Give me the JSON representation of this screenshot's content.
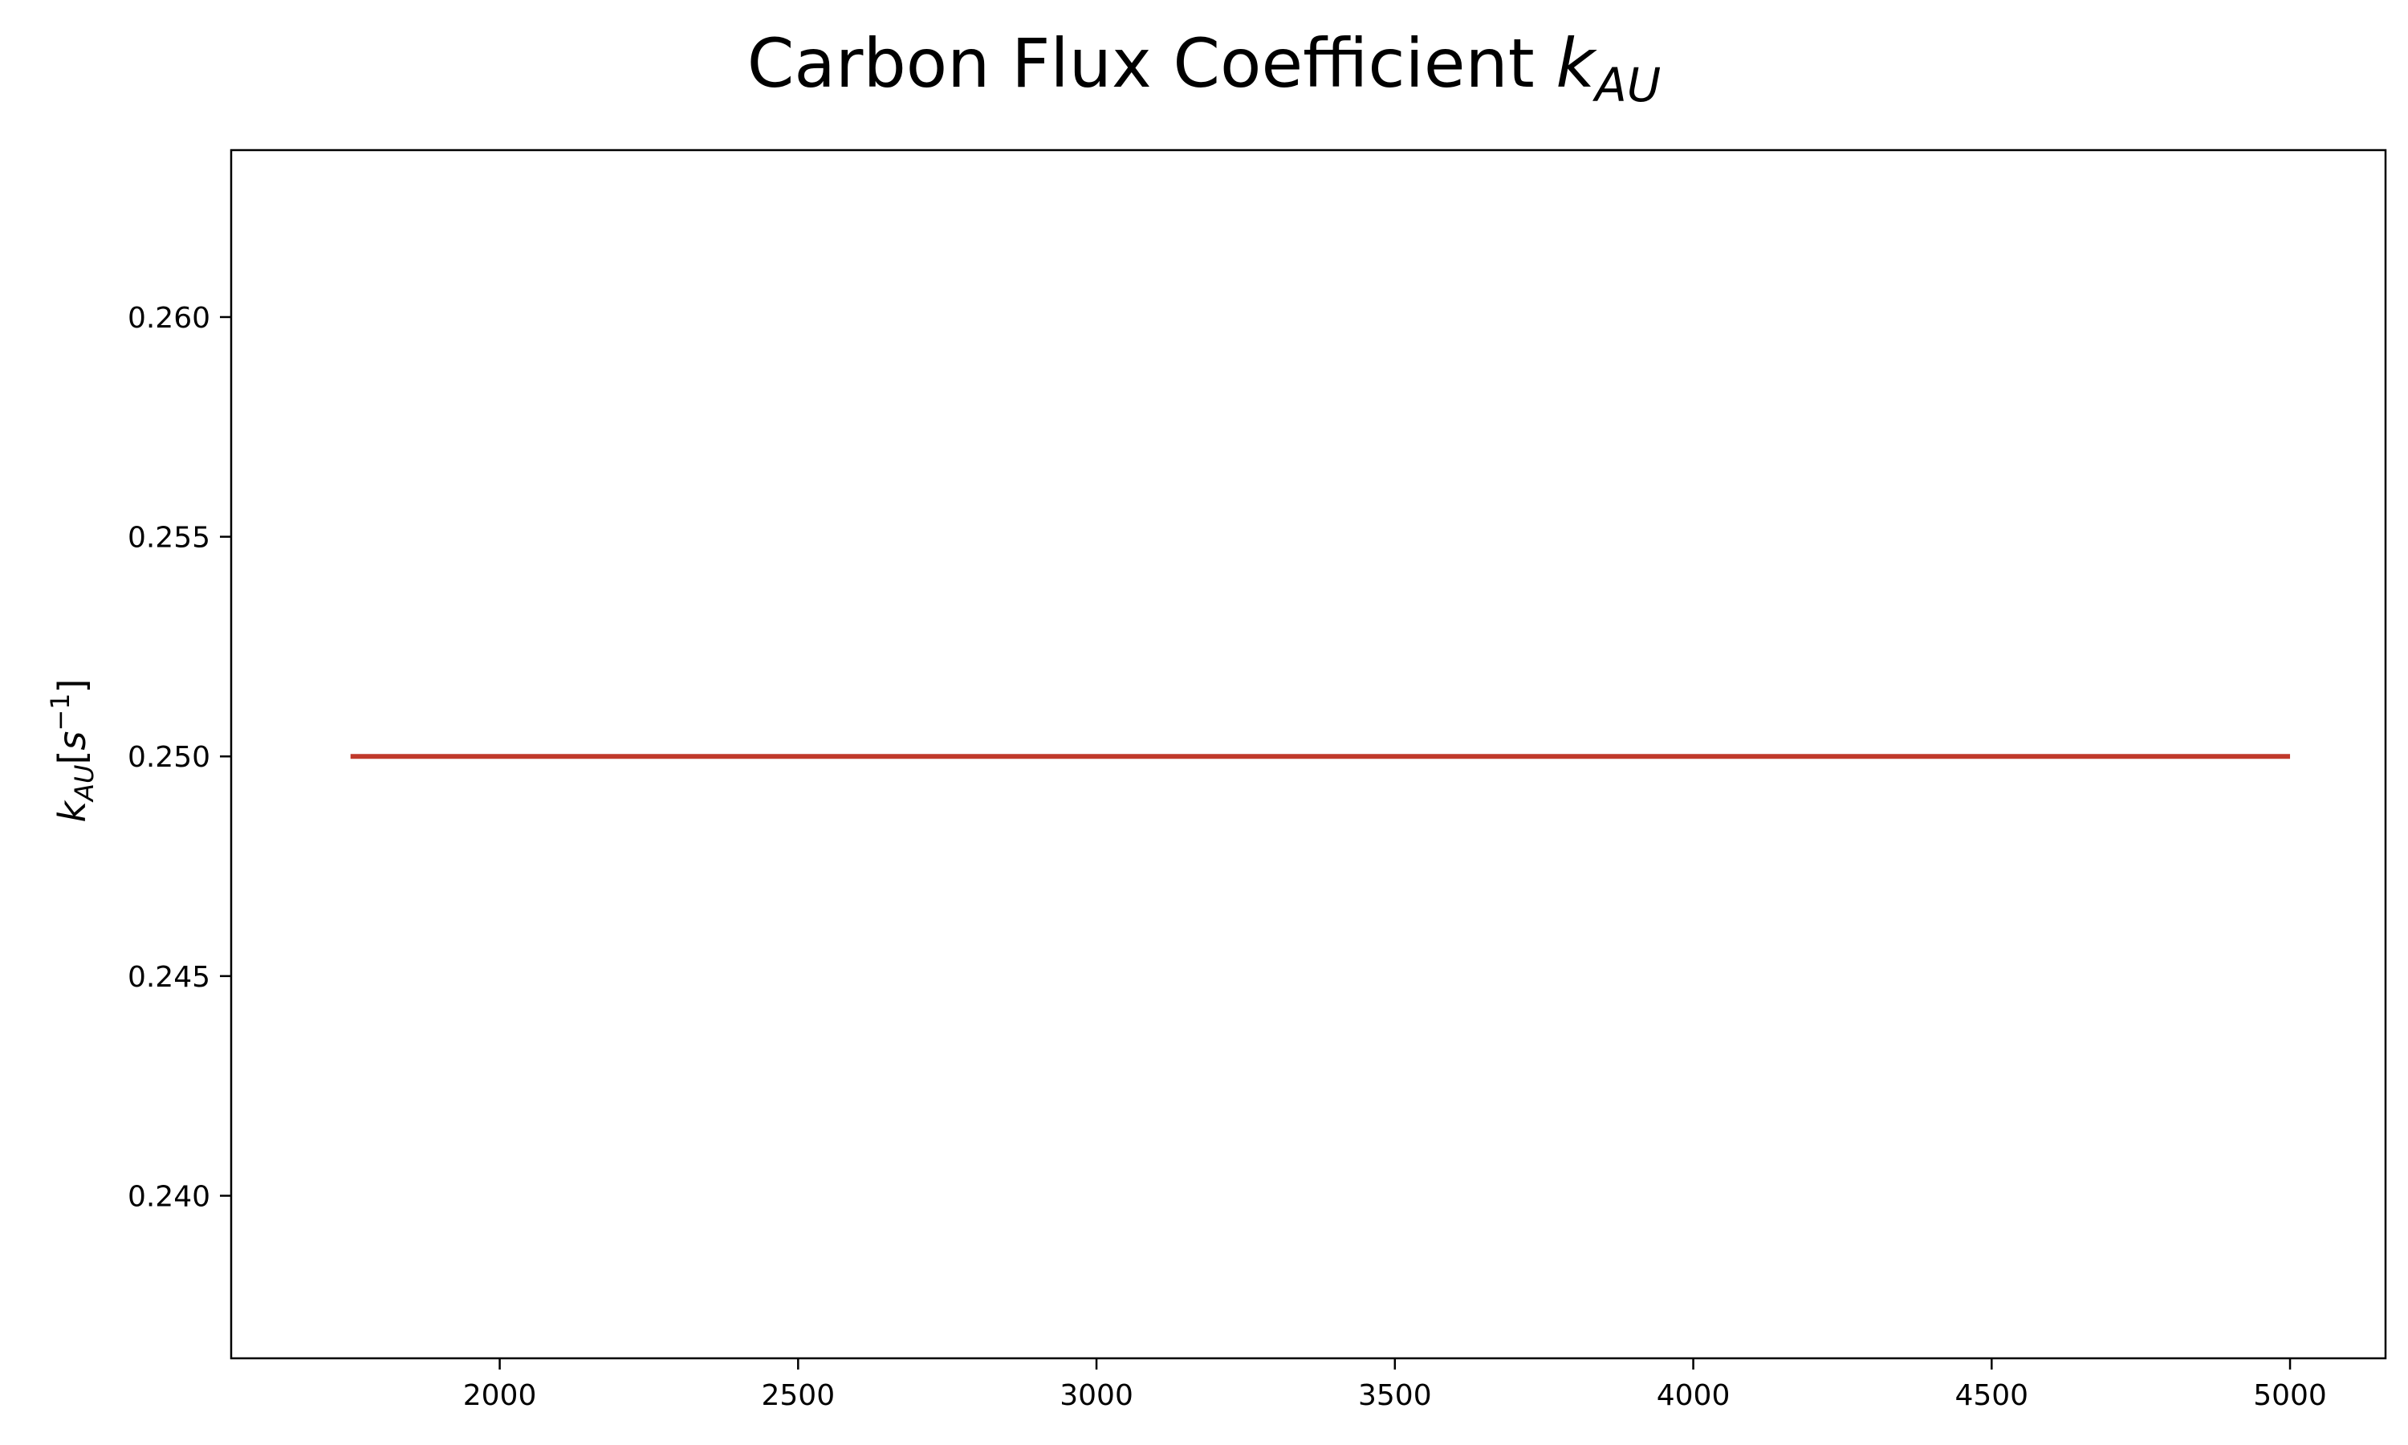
{
  "chart_data": {
    "type": "line",
    "title": {
      "main": "Carbon Flux Coefficient ",
      "symbol": "k",
      "subscript": "AU"
    },
    "ylabel": {
      "symbol": "k",
      "subscript": "AU",
      "unit_prefix": "[",
      "unit_base": "s",
      "unit_exponent": "−1",
      "unit_suffix": "]"
    },
    "xlabel": "",
    "xlim": [
      1550,
      5160
    ],
    "ylim": [
      0.2363,
      0.2638
    ],
    "xticks": [
      2000,
      2500,
      3000,
      3500,
      4000,
      4500,
      5000
    ],
    "xtick_labels": [
      "2000",
      "2500",
      "3000",
      "3500",
      "4000",
      "4500",
      "5000"
    ],
    "yticks": [
      0.24,
      0.245,
      0.25,
      0.255,
      0.26
    ],
    "ytick_labels": [
      "0.240",
      "0.245",
      "0.250",
      "0.255",
      "0.260"
    ],
    "grid": false,
    "legend": "none",
    "series": [
      {
        "color": "#c0392b",
        "x": [
          1750,
          5000
        ],
        "y": [
          0.25,
          0.25
        ]
      }
    ]
  }
}
